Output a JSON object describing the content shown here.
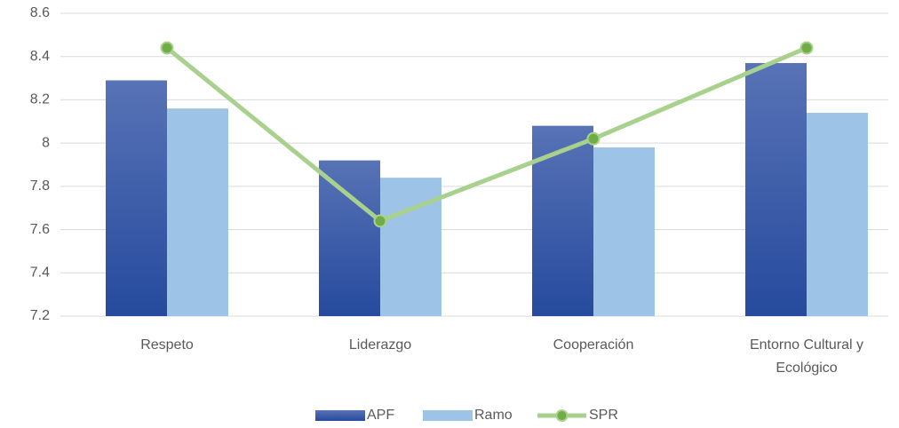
{
  "chart_data": {
    "type": "bar",
    "categories": [
      "Respeto",
      "Liderazgo",
      "Cooperación",
      "Entorno Cultural y Ecológico"
    ],
    "series": [
      {
        "name": "APF",
        "color": "#2f4f9f",
        "values": [
          8.29,
          7.92,
          8.08,
          8.37
        ]
      },
      {
        "name": "Ramo",
        "color": "#9dc3e6",
        "values": [
          8.16,
          7.84,
          7.98,
          8.14
        ]
      },
      {
        "name": "SPR",
        "type": "line",
        "color": "#a9d18e",
        "marker_color": "#70ad47",
        "values": [
          8.44,
          7.64,
          8.02,
          8.44
        ]
      }
    ],
    "ylim": [
      7.2,
      8.6
    ],
    "yticks": [
      7.2,
      7.4,
      7.6,
      7.8,
      8,
      8.2,
      8.4,
      8.6
    ],
    "grid": true,
    "legend": "bottom"
  }
}
